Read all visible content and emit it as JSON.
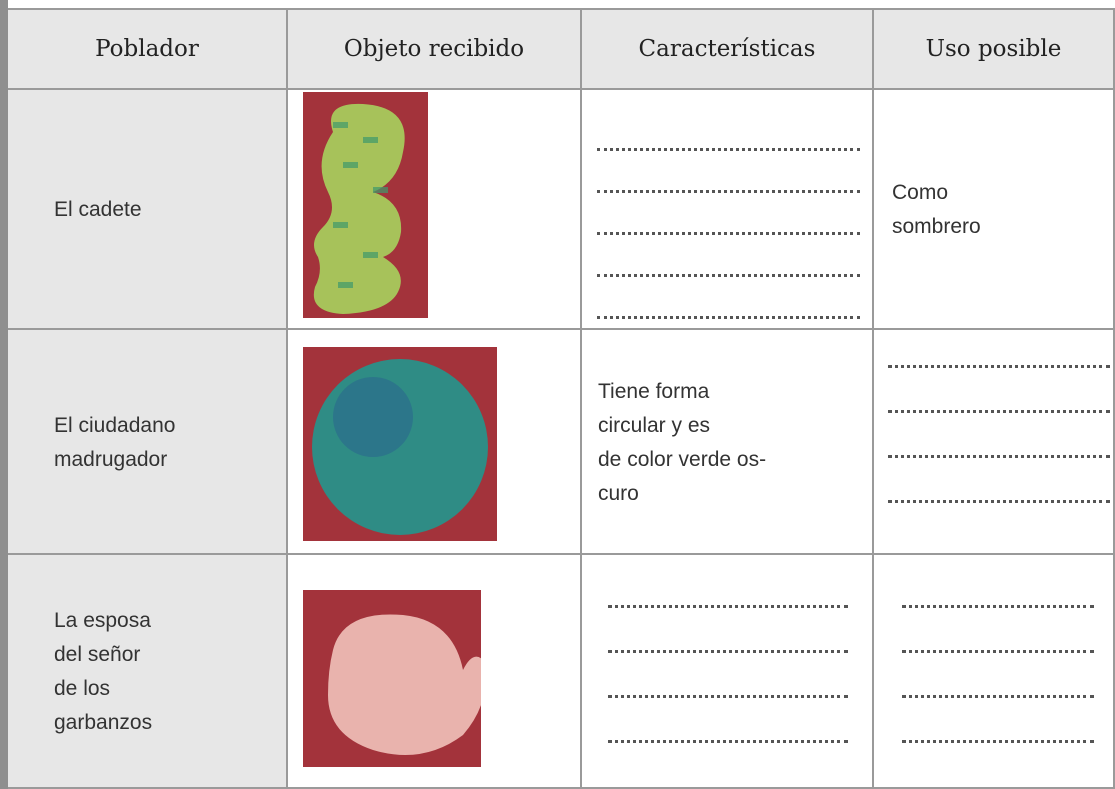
{
  "table": {
    "headers": [
      "Poblador",
      "Objeto recibido",
      "Características",
      "Uso posible"
    ],
    "rows": [
      {
        "poblador": [
          "El cadete"
        ],
        "caracteristicas": [],
        "uso": [
          "Como",
          "sombrero"
        ]
      },
      {
        "poblador": [
          "El ciudadano",
          "madrugador"
        ],
        "caracteristicas": [
          "Tiene forma",
          "circular y es",
          "de color verde os-",
          "curo"
        ],
        "uso": []
      },
      {
        "poblador": [
          "La esposa",
          "del señor",
          "de los",
          "garbanzos"
        ],
        "caracteristicas": [],
        "uso": []
      }
    ]
  }
}
